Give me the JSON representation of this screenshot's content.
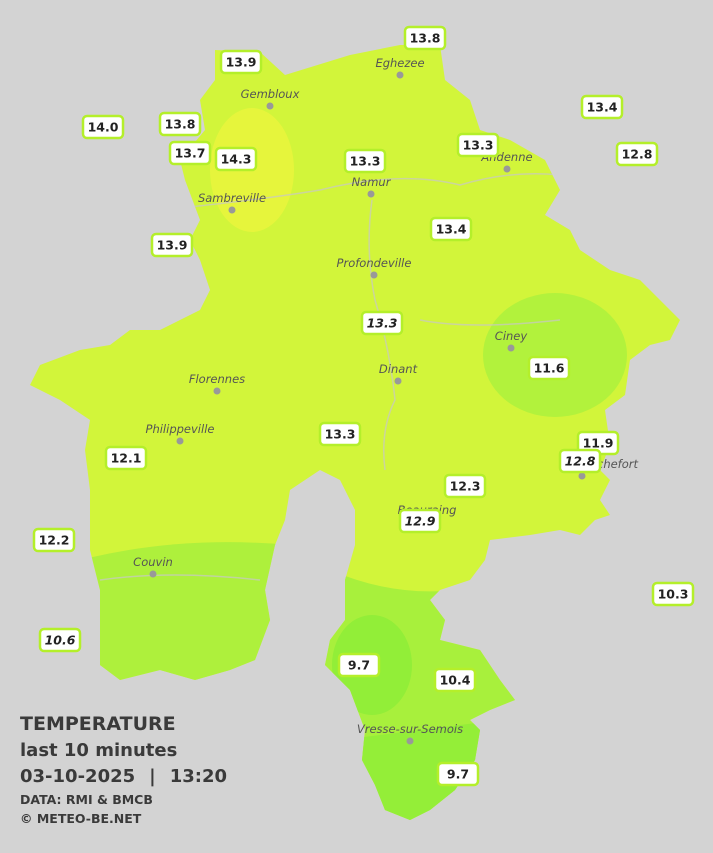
{
  "legend": {
    "title": "TEMPERATURE",
    "period": "last 10 minutes",
    "date": "03-10-2025",
    "separator": "|",
    "time": "13:20",
    "source": "DATA: RMI & BMCB",
    "credit": "© METEO-BE.NET"
  },
  "cities": [
    "Eghezee",
    "Gembloux",
    "Andenne",
    "Namur",
    "Sambreville",
    "Profondeville",
    "Ciney",
    "Dinant",
    "Florennes",
    "Philippeville",
    "Rochefort",
    "Beauraing",
    "Couvin",
    "Vresse-sur-Semois"
  ],
  "stations": [
    "13.9",
    "13.8",
    "13.4",
    "14.0",
    "13.8",
    "13.7",
    "14.3",
    "13.3",
    "13.3",
    "12.8",
    "13.9",
    "13.4",
    "13.3",
    "11.6",
    "13.3",
    "11.9",
    "12.8",
    "12.1",
    "12.3",
    "12.9",
    "12.2",
    "10.3",
    "10.6",
    "9.7",
    "10.4",
    "9.7"
  ]
}
